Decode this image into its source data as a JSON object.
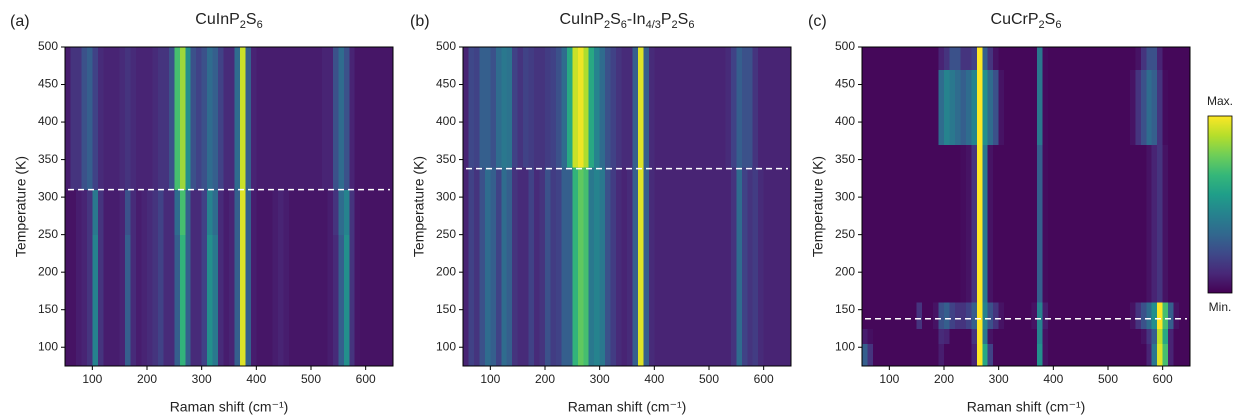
{
  "chart_data": [
    {
      "type": "heatmap",
      "panel_label": "(a)",
      "title_parts": [
        {
          "text": "CuInP"
        },
        {
          "text": "2",
          "sub": true
        },
        {
          "text": "S"
        },
        {
          "text": "6",
          "sub": true
        }
      ],
      "xlabel": "Raman shift (cm⁻¹)",
      "ylabel": "Temperature (K)",
      "xlim": [
        50,
        650
      ],
      "xticks": [
        100,
        200,
        300,
        400,
        500,
        600
      ],
      "ylim": [
        75,
        500
      ],
      "yticks": [
        100,
        150,
        200,
        250,
        300,
        350,
        400,
        450,
        500
      ],
      "zlim": [
        0,
        100
      ],
      "colormap": "viridis",
      "transition_temperature": 310,
      "xbins": [
        50,
        60,
        70,
        80,
        90,
        100,
        110,
        120,
        130,
        140,
        150,
        160,
        170,
        180,
        190,
        200,
        210,
        220,
        230,
        240,
        250,
        260,
        270,
        280,
        290,
        300,
        310,
        320,
        330,
        340,
        350,
        360,
        370,
        380,
        390,
        400,
        410,
        420,
        430,
        440,
        450,
        460,
        470,
        480,
        490,
        500,
        510,
        520,
        530,
        540,
        550,
        560,
        570,
        580,
        590,
        600,
        610,
        620,
        630,
        640,
        650
      ],
      "ybins": [
        75,
        150,
        250,
        310,
        400,
        500
      ],
      "z": [
        [
          5,
          5,
          8,
          10,
          15,
          45,
          15,
          8,
          8,
          8,
          10,
          30,
          12,
          8,
          10,
          12,
          15,
          20,
          12,
          12,
          30,
          65,
          30,
          12,
          12,
          20,
          50,
          40,
          12,
          8,
          10,
          30,
          95,
          30,
          8,
          6,
          6,
          6,
          8,
          10,
          8,
          6,
          6,
          6,
          6,
          6,
          6,
          6,
          8,
          12,
          30,
          50,
          15,
          6,
          5,
          5,
          5,
          5,
          5,
          5
        ],
        [
          5,
          5,
          8,
          10,
          15,
          45,
          15,
          8,
          8,
          8,
          10,
          30,
          12,
          8,
          10,
          12,
          15,
          20,
          12,
          12,
          30,
          65,
          30,
          12,
          12,
          20,
          50,
          40,
          12,
          8,
          10,
          30,
          95,
          30,
          8,
          6,
          6,
          6,
          8,
          10,
          8,
          6,
          6,
          6,
          6,
          6,
          6,
          6,
          8,
          12,
          30,
          50,
          15,
          6,
          5,
          5,
          5,
          5,
          5,
          5
        ],
        [
          5,
          5,
          8,
          10,
          15,
          40,
          15,
          8,
          8,
          8,
          10,
          25,
          12,
          8,
          10,
          12,
          15,
          20,
          12,
          12,
          35,
          70,
          30,
          12,
          12,
          20,
          45,
          35,
          12,
          8,
          10,
          30,
          95,
          30,
          8,
          6,
          6,
          6,
          8,
          10,
          8,
          6,
          6,
          6,
          6,
          6,
          6,
          6,
          8,
          15,
          35,
          45,
          15,
          6,
          5,
          5,
          5,
          5,
          5,
          5
        ],
        [
          8,
          15,
          15,
          25,
          30,
          20,
          12,
          10,
          10,
          10,
          12,
          15,
          12,
          10,
          10,
          10,
          12,
          15,
          15,
          25,
          70,
          85,
          50,
          25,
          20,
          25,
          35,
          30,
          20,
          12,
          12,
          35,
          92,
          30,
          10,
          8,
          8,
          8,
          8,
          8,
          8,
          8,
          8,
          8,
          8,
          8,
          8,
          10,
          10,
          25,
          35,
          25,
          10,
          6,
          6,
          6,
          6,
          6,
          6,
          6
        ],
        [
          8,
          15,
          15,
          25,
          30,
          20,
          12,
          10,
          10,
          10,
          12,
          15,
          12,
          10,
          10,
          10,
          12,
          15,
          15,
          25,
          70,
          85,
          50,
          25,
          20,
          25,
          35,
          30,
          20,
          12,
          12,
          35,
          92,
          30,
          10,
          8,
          8,
          8,
          8,
          8,
          8,
          8,
          8,
          8,
          8,
          8,
          8,
          10,
          10,
          25,
          35,
          25,
          10,
          6,
          6,
          6,
          6,
          6,
          6,
          6
        ]
      ]
    },
    {
      "type": "heatmap",
      "panel_label": "(b)",
      "title_parts": [
        {
          "text": "CuInP"
        },
        {
          "text": "2",
          "sub": true
        },
        {
          "text": "S"
        },
        {
          "text": "6",
          "sub": true
        },
        {
          "text": "-In"
        },
        {
          "text": "4/3",
          "sub": true
        },
        {
          "text": "P"
        },
        {
          "text": "2",
          "sub": true
        },
        {
          "text": "S"
        },
        {
          "text": "6",
          "sub": true
        }
      ],
      "xlabel": "Raman shift (cm⁻¹)",
      "ylabel": "Temperature (K)",
      "xlim": [
        50,
        650
      ],
      "xticks": [
        100,
        200,
        300,
        400,
        500,
        600
      ],
      "ylim": [
        75,
        500
      ],
      "yticks": [
        100,
        150,
        200,
        250,
        300,
        350,
        400,
        450,
        500
      ],
      "zlim": [
        0,
        100
      ],
      "colormap": "viridis",
      "transition_temperature": 338,
      "xbins": [
        50,
        60,
        70,
        80,
        90,
        100,
        110,
        120,
        130,
        140,
        150,
        160,
        170,
        180,
        190,
        200,
        210,
        220,
        230,
        240,
        250,
        260,
        270,
        280,
        290,
        300,
        310,
        320,
        330,
        340,
        350,
        360,
        370,
        380,
        390,
        400,
        410,
        420,
        430,
        440,
        450,
        460,
        470,
        480,
        490,
        500,
        510,
        520,
        530,
        540,
        550,
        560,
        570,
        580,
        590,
        600,
        610,
        620,
        630,
        640,
        650
      ],
      "ybins": [
        75,
        150,
        340,
        420,
        500
      ],
      "z": [
        [
          10,
          20,
          15,
          25,
          35,
          30,
          20,
          35,
          30,
          15,
          12,
          12,
          20,
          12,
          15,
          25,
          18,
          20,
          30,
          30,
          65,
          75,
          70,
          40,
          45,
          40,
          25,
          18,
          12,
          10,
          12,
          30,
          95,
          30,
          12,
          10,
          10,
          10,
          10,
          10,
          10,
          10,
          10,
          10,
          10,
          10,
          10,
          10,
          10,
          15,
          35,
          20,
          15,
          18,
          12,
          10,
          10,
          10,
          10,
          10
        ],
        [
          10,
          20,
          15,
          25,
          35,
          30,
          20,
          35,
          30,
          15,
          12,
          12,
          20,
          12,
          15,
          25,
          18,
          20,
          30,
          30,
          65,
          75,
          70,
          40,
          45,
          40,
          25,
          18,
          12,
          10,
          12,
          30,
          95,
          30,
          12,
          10,
          10,
          10,
          10,
          10,
          10,
          10,
          10,
          10,
          10,
          10,
          10,
          10,
          10,
          15,
          35,
          20,
          15,
          18,
          12,
          10,
          10,
          10,
          10,
          10
        ],
        [
          10,
          22,
          20,
          30,
          30,
          25,
          35,
          40,
          38,
          20,
          15,
          20,
          18,
          15,
          15,
          18,
          20,
          25,
          35,
          60,
          92,
          98,
          88,
          60,
          45,
          35,
          25,
          20,
          15,
          12,
          12,
          30,
          95,
          30,
          12,
          10,
          10,
          10,
          10,
          10,
          10,
          10,
          10,
          10,
          10,
          10,
          10,
          10,
          12,
          20,
          30,
          25,
          25,
          15,
          10,
          10,
          10,
          10,
          10,
          10
        ],
        [
          10,
          22,
          20,
          30,
          30,
          25,
          35,
          40,
          38,
          20,
          15,
          20,
          18,
          15,
          15,
          18,
          20,
          25,
          35,
          60,
          92,
          98,
          88,
          60,
          45,
          35,
          25,
          20,
          15,
          12,
          12,
          30,
          95,
          30,
          12,
          10,
          10,
          10,
          10,
          10,
          10,
          10,
          10,
          10,
          10,
          10,
          10,
          10,
          12,
          20,
          30,
          25,
          25,
          15,
          10,
          10,
          10,
          10,
          10,
          10
        ]
      ]
    },
    {
      "type": "heatmap",
      "panel_label": "(c)",
      "title_parts": [
        {
          "text": "CuCrP"
        },
        {
          "text": "2",
          "sub": true
        },
        {
          "text": "S"
        },
        {
          "text": "6",
          "sub": true
        }
      ],
      "xlabel": "Raman shift (cm⁻¹)",
      "ylabel": "Temperature (K)",
      "xlim": [
        50,
        650
      ],
      "xticks": [
        100,
        200,
        300,
        400,
        500,
        600
      ],
      "ylim": [
        75,
        500
      ],
      "yticks": [
        100,
        150,
        200,
        250,
        300,
        350,
        400,
        450,
        500
      ],
      "zlim": [
        0,
        100
      ],
      "colormap": "viridis",
      "transition_temperature": 138,
      "xbins": [
        50,
        60,
        70,
        80,
        90,
        100,
        110,
        120,
        130,
        140,
        150,
        160,
        170,
        180,
        190,
        200,
        210,
        220,
        230,
        240,
        250,
        260,
        270,
        280,
        290,
        300,
        310,
        320,
        330,
        340,
        350,
        360,
        370,
        380,
        390,
        400,
        410,
        420,
        430,
        440,
        450,
        460,
        470,
        480,
        490,
        500,
        510,
        520,
        530,
        540,
        550,
        560,
        570,
        580,
        590,
        600,
        610,
        620,
        630,
        640,
        650
      ],
      "ybins": [
        75,
        105,
        125,
        160,
        370,
        470,
        500
      ],
      "z": [
        [
          30,
          15,
          2,
          2,
          2,
          2,
          2,
          2,
          2,
          2,
          2,
          2,
          2,
          2,
          8,
          2,
          2,
          2,
          2,
          2,
          10,
          100,
          60,
          20,
          2,
          2,
          2,
          2,
          2,
          2,
          2,
          2,
          50,
          5,
          2,
          2,
          2,
          2,
          2,
          2,
          2,
          2,
          2,
          2,
          2,
          2,
          2,
          2,
          2,
          2,
          2,
          2,
          10,
          40,
          95,
          70,
          10,
          2,
          2,
          2
        ],
        [
          8,
          4,
          2,
          2,
          2,
          2,
          2,
          2,
          2,
          2,
          2,
          2,
          2,
          2,
          12,
          10,
          2,
          2,
          2,
          2,
          15,
          100,
          40,
          5,
          2,
          2,
          2,
          2,
          2,
          2,
          2,
          2,
          45,
          5,
          2,
          2,
          2,
          2,
          2,
          2,
          2,
          2,
          2,
          2,
          2,
          2,
          2,
          2,
          2,
          2,
          2,
          5,
          15,
          30,
          90,
          60,
          10,
          2,
          2,
          2
        ],
        [
          2,
          2,
          2,
          2,
          2,
          2,
          2,
          2,
          2,
          2,
          15,
          2,
          2,
          5,
          25,
          30,
          20,
          15,
          15,
          20,
          30,
          100,
          45,
          25,
          15,
          5,
          2,
          2,
          2,
          2,
          2,
          5,
          45,
          8,
          2,
          2,
          2,
          2,
          2,
          2,
          2,
          2,
          2,
          2,
          2,
          2,
          2,
          2,
          2,
          5,
          15,
          25,
          35,
          50,
          100,
          70,
          30,
          5,
          2,
          2
        ],
        [
          2,
          2,
          2,
          2,
          2,
          2,
          2,
          2,
          2,
          2,
          2,
          2,
          2,
          2,
          2,
          2,
          2,
          2,
          3,
          5,
          15,
          100,
          40,
          5,
          2,
          2,
          2,
          2,
          2,
          2,
          2,
          2,
          30,
          3,
          2,
          2,
          2,
          2,
          2,
          2,
          2,
          2,
          2,
          2,
          2,
          2,
          2,
          2,
          2,
          2,
          2,
          2,
          5,
          10,
          15,
          5,
          2,
          2,
          2,
          2
        ],
        [
          2,
          2,
          2,
          2,
          2,
          2,
          2,
          2,
          2,
          2,
          2,
          2,
          2,
          2,
          35,
          45,
          40,
          35,
          30,
          35,
          45,
          100,
          50,
          35,
          25,
          5,
          2,
          2,
          2,
          2,
          2,
          2,
          40,
          3,
          2,
          2,
          2,
          2,
          2,
          2,
          2,
          2,
          2,
          2,
          2,
          2,
          2,
          2,
          2,
          5,
          15,
          25,
          35,
          30,
          15,
          3,
          2,
          2,
          2,
          2
        ],
        [
          2,
          2,
          2,
          2,
          2,
          2,
          2,
          2,
          2,
          2,
          2,
          2,
          2,
          2,
          10,
          15,
          25,
          25,
          15,
          15,
          20,
          100,
          30,
          15,
          5,
          2,
          2,
          2,
          2,
          2,
          2,
          2,
          40,
          3,
          2,
          2,
          2,
          2,
          2,
          2,
          2,
          2,
          2,
          2,
          2,
          2,
          2,
          2,
          2,
          2,
          5,
          15,
          25,
          25,
          10,
          2,
          2,
          2,
          2,
          2
        ]
      ]
    }
  ],
  "colorbar": {
    "colormap": "viridis",
    "max_label": "Max.",
    "min_label": "Min."
  }
}
